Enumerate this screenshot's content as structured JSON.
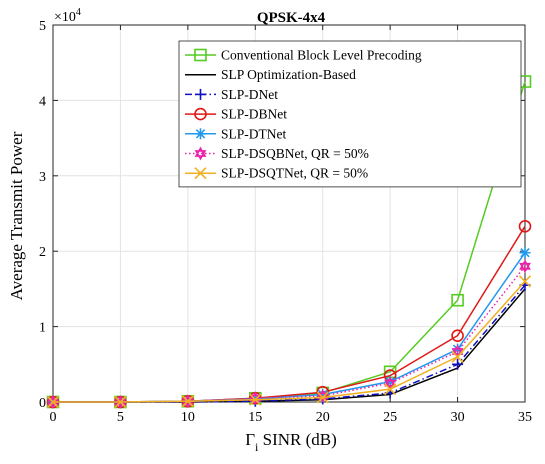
{
  "chart_data": {
    "type": "line",
    "title": "QPSK-4x4",
    "xlabel": "Γ",
    "xlabel_sub": "i",
    "xlabel_rest": " SINR (dB)",
    "ylabel": "Average Transmit Power",
    "y_exponent_base": "×10",
    "y_exponent_power": "4",
    "y_scale": 10000,
    "xlim": [
      0,
      35
    ],
    "ylim": [
      0,
      5
    ],
    "xticks": [
      0,
      5,
      10,
      15,
      20,
      25,
      30,
      35
    ],
    "yticks": [
      0,
      1,
      2,
      3,
      4,
      5
    ],
    "grid": true,
    "legend_position": "top-right",
    "x": [
      0,
      5,
      10,
      15,
      20,
      25,
      30,
      35
    ],
    "series": [
      {
        "name": "Conventional Block Level Precoding",
        "color": "#55cc22",
        "marker": "square",
        "dash": "solid",
        "values": [
          0.0,
          0.0,
          0.01,
          0.05,
          0.12,
          0.4,
          1.35,
          4.25
        ]
      },
      {
        "name": "SLP Optimization-Based",
        "color": "#000000",
        "marker": "none",
        "dash": "solid",
        "values": [
          0.0,
          0.0,
          0.0,
          0.01,
          0.03,
          0.1,
          0.45,
          1.5
        ]
      },
      {
        "name": "SLP-DNet",
        "color": "#1010c0",
        "marker": "plus",
        "dash": "dashdot",
        "values": [
          0.0,
          0.0,
          0.0,
          0.01,
          0.04,
          0.12,
          0.5,
          1.55
        ]
      },
      {
        "name": "SLP-DBNet",
        "color": "#e01818",
        "marker": "circle",
        "dash": "solid",
        "values": [
          0.0,
          0.0,
          0.01,
          0.05,
          0.13,
          0.35,
          0.88,
          2.33
        ]
      },
      {
        "name": "SLP-DTNet",
        "color": "#2299ee",
        "marker": "star",
        "dash": "solid",
        "values": [
          0.0,
          0.0,
          0.01,
          0.04,
          0.1,
          0.27,
          0.7,
          1.98
        ]
      },
      {
        "name": "SLP-DSQBNet, QR = 50%",
        "color": "#ee22aa",
        "marker": "hexstar",
        "dash": "dotted",
        "values": [
          0.0,
          0.0,
          0.01,
          0.05,
          0.08,
          0.25,
          0.67,
          1.8
        ]
      },
      {
        "name": "SLP-DSQTNet, QR = 50%",
        "color": "#f0b020",
        "marker": "x",
        "dash": "solid",
        "values": [
          0.0,
          0.0,
          0.01,
          0.03,
          0.06,
          0.17,
          0.6,
          1.6
        ]
      }
    ]
  }
}
